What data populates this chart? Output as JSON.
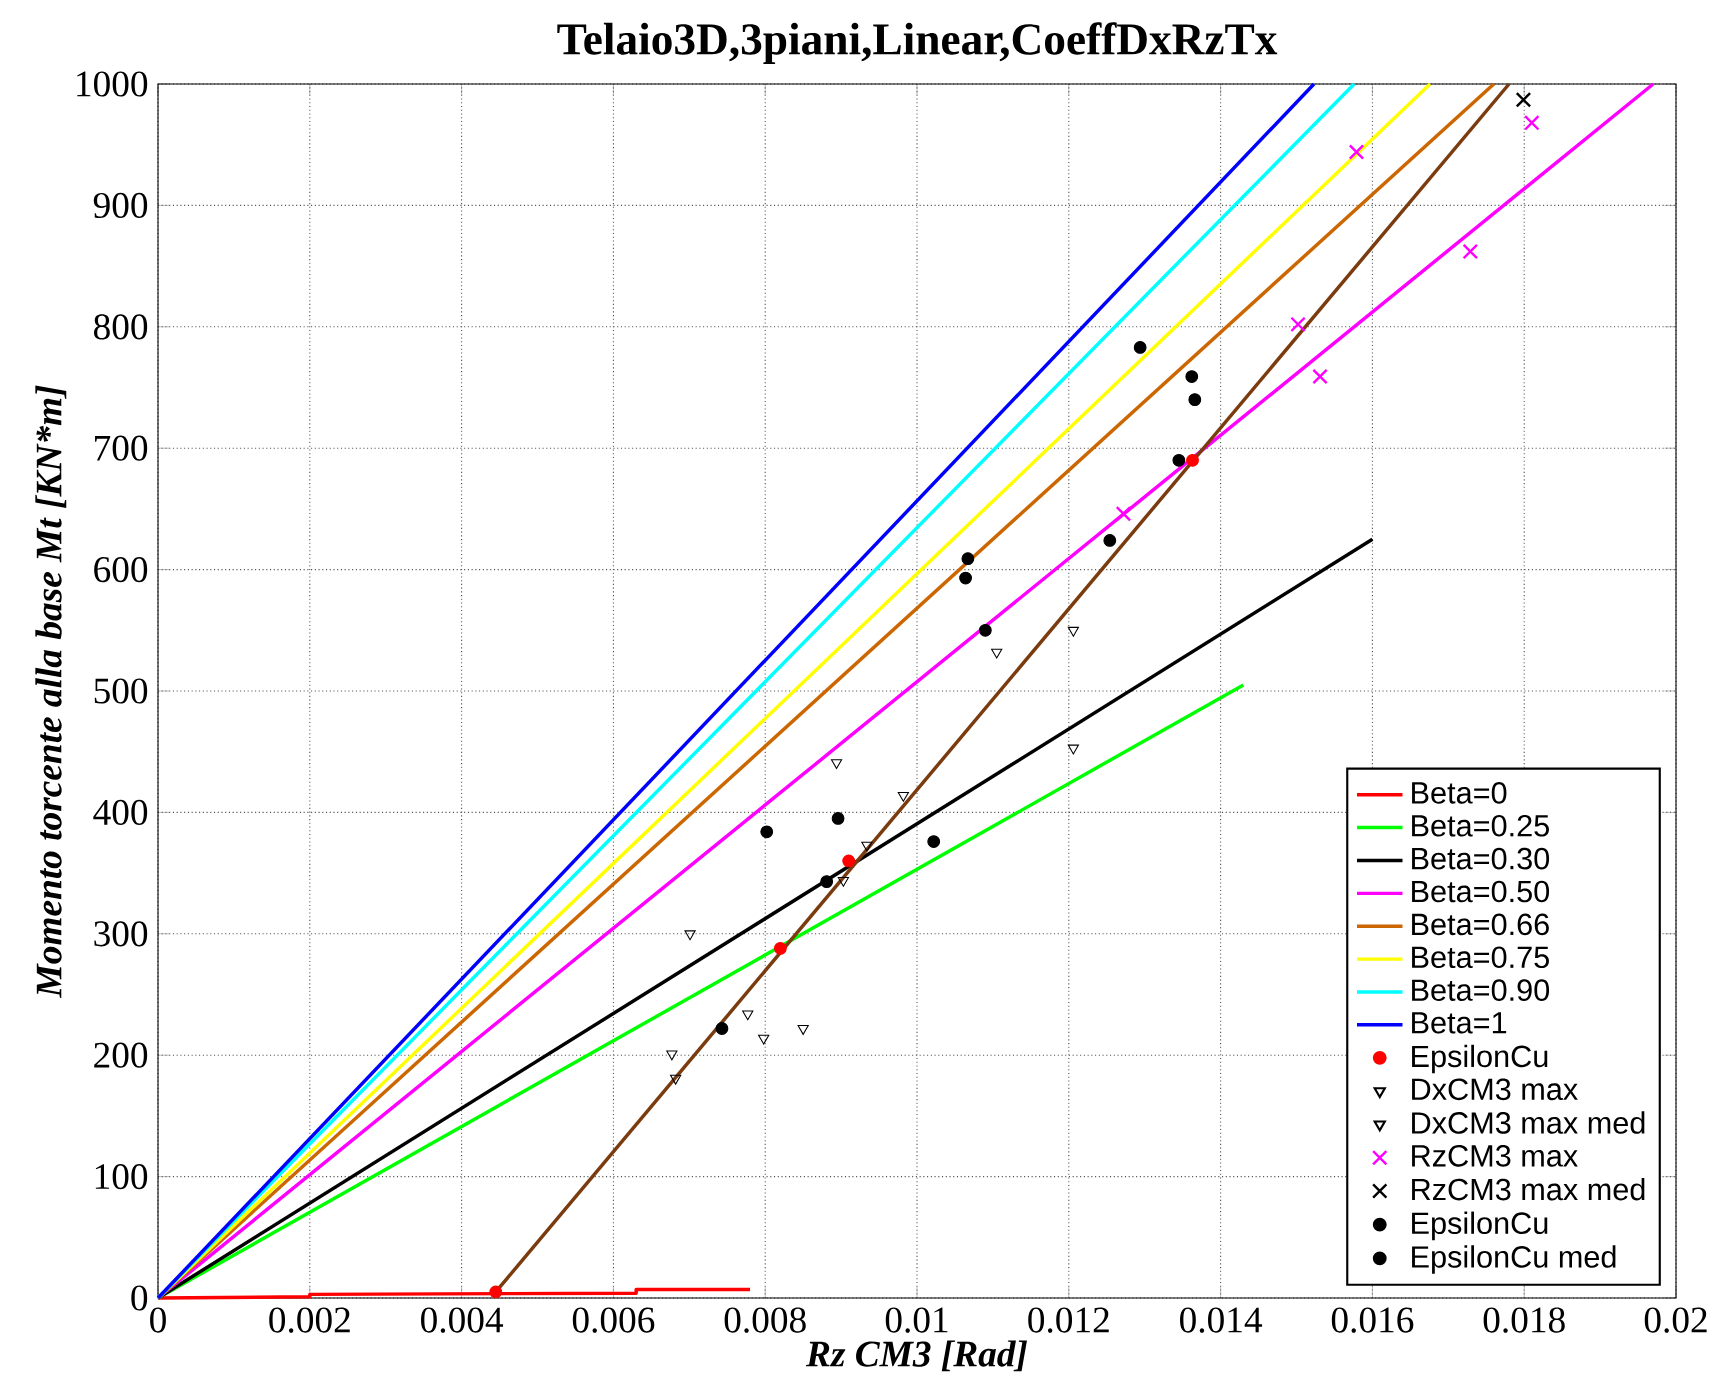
{
  "chart_data": {
    "type": "line",
    "title": "Telaio3D,3piani,Linear,CoeffDxRzTx",
    "xlabel": "Rz CM3 [Rad]",
    "ylabel": "Momento torcente alla base Mt [KN*m]",
    "xlim": [
      0,
      0.02
    ],
    "ylim": [
      0,
      1000
    ],
    "xticks": [
      0,
      0.002,
      0.004,
      0.006,
      0.008,
      0.01,
      0.012,
      0.014,
      0.016,
      0.018,
      0.02
    ],
    "yticks": [
      0,
      100,
      200,
      300,
      400,
      500,
      600,
      700,
      800,
      900,
      1000
    ],
    "grid": true,
    "legend": "bottom right",
    "series": [
      {
        "name": "Beta=0",
        "color": "#ff0000",
        "x": [
          0,
          0.002,
          0.002,
          0.0063,
          0.0063,
          0.0078
        ],
        "values": [
          0,
          1,
          3,
          4,
          7,
          7
        ]
      },
      {
        "name": "Beta=0.25",
        "color": "#00ff00",
        "x": [
          0,
          0.0143
        ],
        "values": [
          0,
          505
        ]
      },
      {
        "name": "Beta=0.30",
        "color": "#000000",
        "x": [
          0,
          0.016
        ],
        "values": [
          0,
          625
        ]
      },
      {
        "name": "Beta=0.50",
        "color": "#ff00ff",
        "x": [
          0,
          0.0197
        ],
        "values": [
          0,
          1000
        ]
      },
      {
        "name": "Beta=0.66",
        "color": "#cc6600",
        "x": [
          0,
          0.0176
        ],
        "values": [
          0,
          1000
        ]
      },
      {
        "name": "Beta=0.75",
        "color": "#ffff00",
        "x": [
          0,
          0.01676
        ],
        "values": [
          0,
          1000
        ]
      },
      {
        "name": "Beta=0.90",
        "color": "#00ffff",
        "x": [
          0,
          0.01576
        ],
        "values": [
          0,
          1000
        ]
      },
      {
        "name": "Beta=1",
        "color": "#0000ff",
        "x": [
          0,
          0.01523
        ],
        "values": [
          0,
          1000
        ]
      },
      {
        "color": "#7a3b0f",
        "x": [
          0.00445,
          0.0178
        ],
        "values": [
          5,
          1000
        ]
      },
      {
        "name": "EpsilonCu",
        "type": "scatter",
        "marker": "circle",
        "color": "#ff0000",
        "x": [
          0.00445,
          0.0082,
          0.0091,
          0.01363
        ],
        "values": [
          5,
          288,
          360,
          690
        ]
      },
      {
        "name": "DxCM3 max",
        "type": "scatter",
        "marker": "triangle",
        "color": "#000000",
        "x": [
          0.00894,
          0.00982,
          0.00934,
          0.01206,
          0.01206,
          0.01105,
          0.0085,
          0.00798,
          0.00701,
          0.00677,
          0.00682,
          0.00777
        ],
        "values": [
          441,
          414,
          373,
          550,
          453,
          532,
          222,
          214,
          300,
          201,
          181,
          234
        ]
      },
      {
        "name": "DxCM3 max med",
        "type": "scatter",
        "marker": "triangle",
        "color": "#000000",
        "x": [
          0.00903
        ],
        "values": [
          344
        ]
      },
      {
        "name": "RzCM3 max",
        "type": "scatter",
        "marker": "cross",
        "color": "#ff00ff",
        "x": [
          0.01579,
          0.01502,
          0.01531,
          0.01729,
          0.0181,
          0.01272
        ],
        "values": [
          944,
          802,
          759,
          862,
          968,
          646
        ]
      },
      {
        "name": "RzCM3 max med",
        "type": "scatter",
        "marker": "cross",
        "color": "#000000",
        "x": [
          0.01799
        ],
        "values": [
          987
        ]
      },
      {
        "name": "EpsilonCu",
        "type": "scatter",
        "marker": "circle",
        "color": "#000000",
        "x": [
          0.01294,
          0.01362,
          0.01366,
          0.01345,
          0.01254,
          0.01067,
          0.01064,
          0.00802,
          0.00896,
          0.01022,
          0.00881,
          0.00743
        ],
        "values": [
          783,
          759,
          740,
          690,
          624,
          609,
          593,
          384,
          395,
          376,
          343,
          222
        ]
      },
      {
        "name": "EpsilonCu med",
        "type": "scatter",
        "marker": "circle",
        "color": "#000000",
        "x": [
          0.0109
        ],
        "values": [
          550
        ]
      }
    ]
  }
}
